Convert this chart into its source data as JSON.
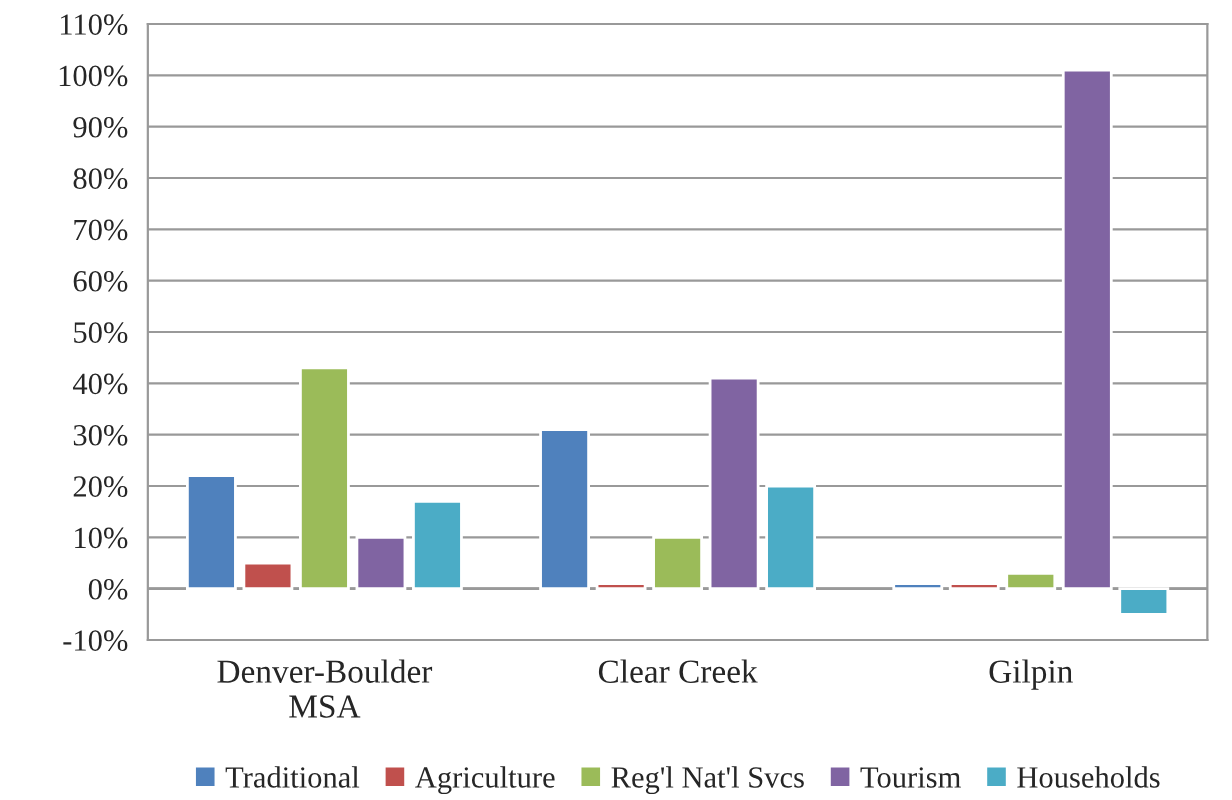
{
  "chart_data": {
    "type": "bar",
    "categories": [
      "Denver-Boulder\nMSA",
      "Clear Creek",
      "Gilpin"
    ],
    "series": [
      {
        "name": "Traditional",
        "color": "#4f81bd",
        "values": [
          22,
          31,
          1
        ]
      },
      {
        "name": "Agriculture",
        "color": "#c0504d",
        "values": [
          5,
          1,
          1
        ]
      },
      {
        "name": "Reg'l Nat'l Svcs",
        "color": "#9bbb59",
        "values": [
          43,
          10,
          3
        ]
      },
      {
        "name": "Tourism",
        "color": "#8064a2",
        "values": [
          10,
          41,
          101
        ]
      },
      {
        "name": "Households",
        "color": "#4bacc6",
        "values": [
          17,
          20,
          -5
        ]
      }
    ],
    "ylim": [
      -10,
      110
    ],
    "yticks": [
      {
        "value": -10,
        "label": "-10%"
      },
      {
        "value": 0,
        "label": "0%"
      },
      {
        "value": 10,
        "label": "10%"
      },
      {
        "value": 20,
        "label": "20%"
      },
      {
        "value": 30,
        "label": "30%"
      },
      {
        "value": 40,
        "label": "40%"
      },
      {
        "value": 50,
        "label": "50%"
      },
      {
        "value": 60,
        "label": "60%"
      },
      {
        "value": 70,
        "label": "70%"
      },
      {
        "value": 80,
        "label": "80%"
      },
      {
        "value": 90,
        "label": "90%"
      },
      {
        "value": 100,
        "label": "100%"
      },
      {
        "value": 110,
        "label": "110%"
      }
    ],
    "grid": "y",
    "legend": "bottom"
  }
}
